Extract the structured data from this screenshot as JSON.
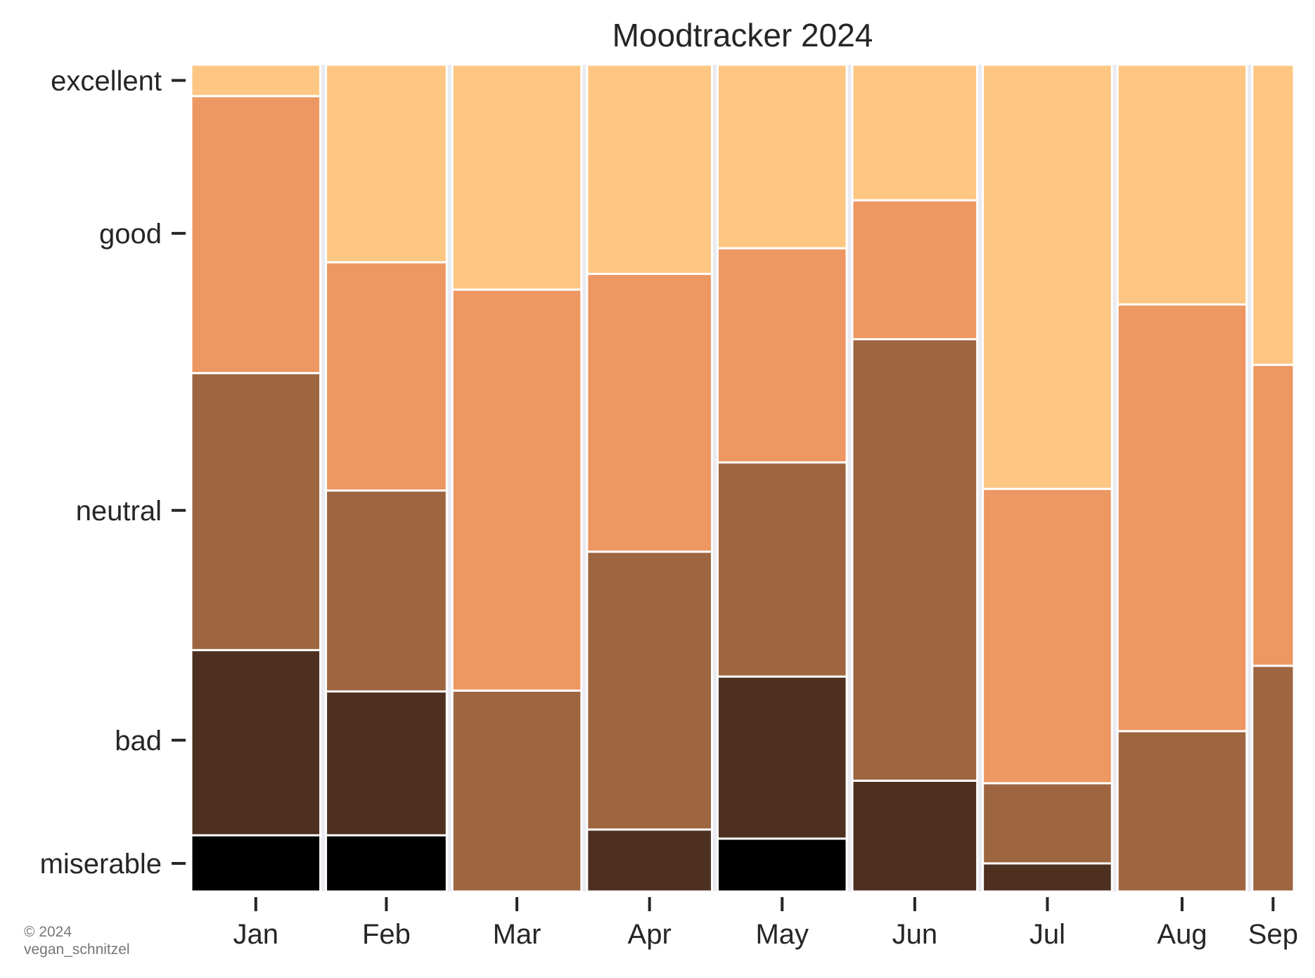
{
  "chart_data": {
    "type": "mosaic",
    "title": "Moodtracker 2024",
    "xlabel": "",
    "ylabel": "",
    "categories": [
      "Jan",
      "Feb",
      "Mar",
      "Apr",
      "May",
      "Jun",
      "Jul",
      "Aug",
      "Sep"
    ],
    "mood_levels": [
      "miserable",
      "bad",
      "neutral",
      "good",
      "excellent"
    ],
    "y_ticks": [
      {
        "label": "excellent",
        "value": 0.981
      },
      {
        "label": "good",
        "value": 0.796
      },
      {
        "label": "neutral",
        "value": 0.461
      },
      {
        "label": "bad",
        "value": 0.183
      },
      {
        "label": "miserable",
        "value": 0.034
      }
    ],
    "column_widths": [
      31,
      29,
      31,
      30,
      31,
      30,
      31,
      31,
      10
    ],
    "colors": {
      "miserable": "#000000",
      "bad": "#4e3021",
      "neutral": "#9d6540",
      "good": "#ed9762",
      "excellent": "#fdc783"
    },
    "series": [
      {
        "values": [
          0.068,
          0.068,
          0.0,
          0.0,
          0.064,
          0.0,
          0.0,
          0.0,
          0.0
        ]
      },
      {
        "values": [
          0.224,
          0.174,
          0.0,
          0.075,
          0.196,
          0.134,
          0.034,
          0.0,
          0.0
        ]
      },
      {
        "values": [
          0.335,
          0.243,
          0.243,
          0.336,
          0.259,
          0.534,
          0.097,
          0.194,
          0.273
        ]
      },
      {
        "values": [
          0.335,
          0.276,
          0.485,
          0.336,
          0.259,
          0.168,
          0.356,
          0.516,
          0.364
        ]
      },
      {
        "values": [
          0.038,
          0.239,
          0.272,
          0.253,
          0.222,
          0.164,
          0.513,
          0.29,
          0.363
        ]
      }
    ],
    "ylim": [
      0,
      1
    ],
    "grid": false,
    "legend": "none",
    "background": "#eaeaf2"
  },
  "credit": {
    "line1": "© 2024",
    "line2": "vegan_schnitzel"
  }
}
